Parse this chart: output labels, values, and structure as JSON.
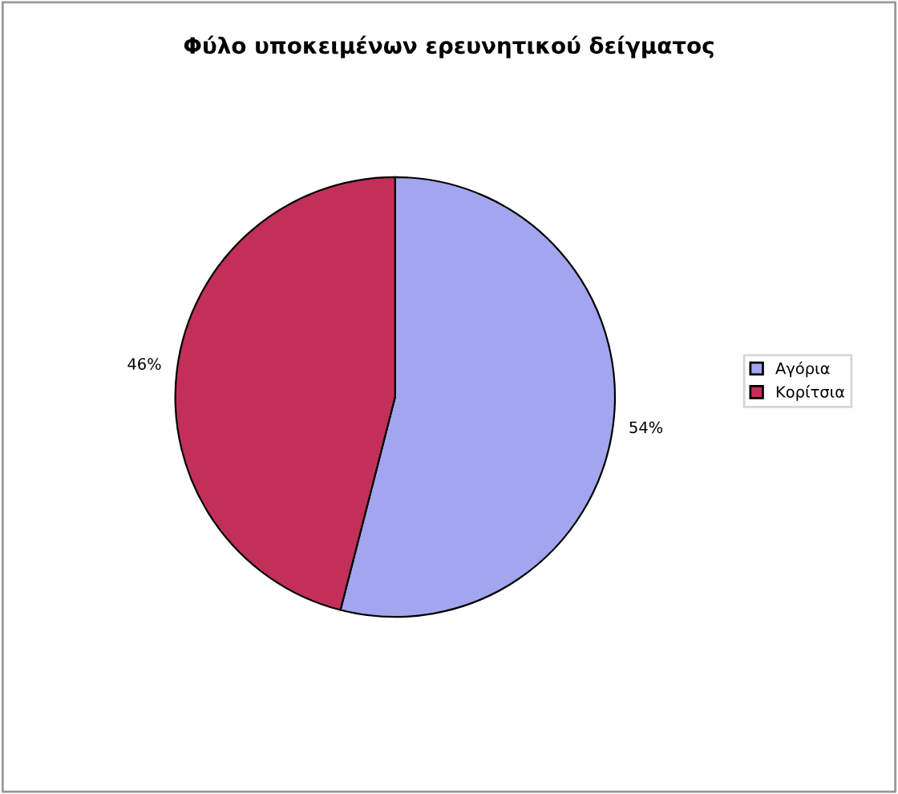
{
  "chart_data": {
    "type": "pie",
    "title": "Φύλο υποκειμένων ερευνητικού δείγματος",
    "categories": [
      "Αγόρια",
      "Κορίτσια"
    ],
    "values": [
      54,
      46
    ],
    "colors": [
      "#a3a6ee",
      "#c2305a"
    ],
    "value_labels": [
      "54%",
      "46%"
    ],
    "legend": "right"
  }
}
